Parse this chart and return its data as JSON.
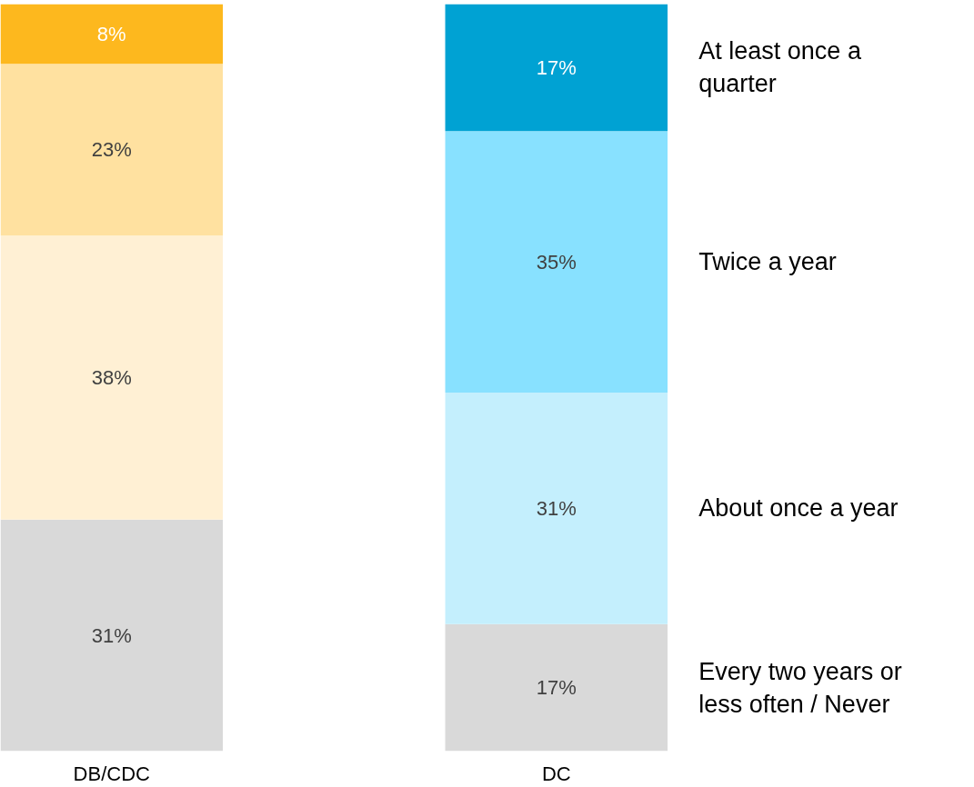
{
  "chart_data": {
    "type": "bar",
    "stacked": true,
    "categories": [
      "DB/CDC",
      "DC"
    ],
    "tick_labels": "x",
    "grid": false,
    "legend": false,
    "series": [
      {
        "name": "Every two years or less often / Never",
        "colors": [
          "#d9d9d9",
          "#d9d9d9"
        ],
        "values": [
          31,
          17
        ],
        "value_labels": [
          "31%",
          "17%"
        ]
      },
      {
        "name": "About once a year",
        "colors": [
          "#fff0d4",
          "#c4effd"
        ],
        "values": [
          38,
          31
        ],
        "value_labels": [
          "38%",
          "31%"
        ]
      },
      {
        "name": "Twice a year",
        "colors": [
          "#ffe1a0",
          "#88e1ff"
        ],
        "values": [
          23,
          35
        ],
        "value_labels": [
          "23%",
          "35%"
        ]
      },
      {
        "name": "At least once a quarter",
        "colors": [
          "#fdb81e",
          "#00a2d3"
        ],
        "values": [
          8,
          17
        ],
        "value_labels": [
          "8%",
          "17%"
        ]
      }
    ]
  }
}
